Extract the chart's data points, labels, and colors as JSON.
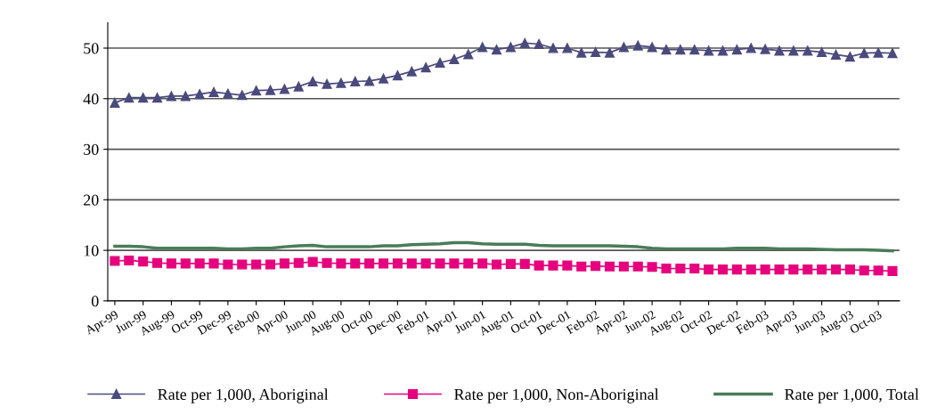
{
  "chart_data": {
    "type": "line",
    "categories": [
      "Apr-99",
      null,
      "Jun-99",
      null,
      "Aug-99",
      null,
      "Oct-99",
      null,
      "Dec-99",
      null,
      "Feb-00",
      null,
      "Apr-00",
      null,
      "Jun-00",
      null,
      "Aug-00",
      null,
      "Oct-00",
      null,
      "Dec-00",
      null,
      "Feb-01",
      null,
      "Apr-01",
      null,
      "Jun-01",
      null,
      "Aug-01",
      null,
      "Oct-01",
      null,
      "Dec-01",
      null,
      "Feb-02",
      null,
      "Apr-02",
      null,
      "Jun-02",
      null,
      "Aug-02",
      null,
      "Oct-02",
      null,
      "Dec-02",
      null,
      "Feb-03",
      null,
      "Apr-03",
      null,
      "Jun-03",
      null,
      "Aug-03",
      null,
      "Oct-03",
      null
    ],
    "series": [
      {
        "name": "Rate per 1,000, Aboriginal",
        "color": "#4b4a7d",
        "marker": "triangle",
        "values": [
          39.2,
          40.2,
          40.2,
          40.2,
          40.5,
          40.5,
          40.9,
          41.3,
          41.0,
          40.7,
          41.6,
          41.7,
          41.9,
          42.4,
          43.4,
          42.9,
          43.1,
          43.4,
          43.5,
          44.0,
          44.6,
          45.4,
          46.2,
          47.1,
          47.8,
          48.8,
          50.2,
          49.7,
          50.2,
          51.0,
          50.8,
          50.0,
          50.0,
          49.1,
          49.2,
          49.1,
          50.2,
          50.5,
          50.2,
          49.7,
          49.7,
          49.7,
          49.5,
          49.5,
          49.7,
          50.0,
          49.8,
          49.5,
          49.5,
          49.5,
          49.2,
          48.7,
          48.3,
          49.0,
          49.1,
          49.0
        ]
      },
      {
        "name": "Rate per 1,000, Non-Aboriginal",
        "color": "#e6007e",
        "marker": "square",
        "values": [
          7.9,
          8.0,
          7.8,
          7.5,
          7.4,
          7.4,
          7.4,
          7.4,
          7.2,
          7.2,
          7.2,
          7.2,
          7.4,
          7.5,
          7.7,
          7.5,
          7.4,
          7.4,
          7.4,
          7.4,
          7.4,
          7.4,
          7.4,
          7.4,
          7.4,
          7.4,
          7.4,
          7.2,
          7.3,
          7.3,
          7.0,
          7.0,
          7.0,
          6.8,
          6.9,
          6.8,
          6.8,
          6.8,
          6.7,
          6.4,
          6.4,
          6.4,
          6.2,
          6.2,
          6.2,
          6.2,
          6.2,
          6.2,
          6.2,
          6.2,
          6.2,
          6.2,
          6.2,
          6.0,
          6.0,
          5.9
        ]
      },
      {
        "name": "Rate per 1,000, Total",
        "color": "#4a7c59",
        "marker": "none",
        "values": [
          10.8,
          10.8,
          10.7,
          10.4,
          10.4,
          10.4,
          10.4,
          10.4,
          10.3,
          10.3,
          10.4,
          10.4,
          10.7,
          10.9,
          11.0,
          10.7,
          10.7,
          10.7,
          10.7,
          10.9,
          10.9,
          11.1,
          11.2,
          11.3,
          11.5,
          11.5,
          11.3,
          11.2,
          11.2,
          11.2,
          11.0,
          10.9,
          10.9,
          10.9,
          10.9,
          10.9,
          10.8,
          10.7,
          10.4,
          10.3,
          10.3,
          10.3,
          10.3,
          10.3,
          10.4,
          10.4,
          10.4,
          10.3,
          10.3,
          10.3,
          10.2,
          10.1,
          10.1,
          10.1,
          10.0,
          9.9
        ]
      }
    ],
    "ylim": [
      0,
      55
    ],
    "yticks": [
      0,
      10,
      20,
      30,
      40,
      50
    ],
    "grid": "y",
    "legend": "bottom",
    "line_style": "solid"
  }
}
